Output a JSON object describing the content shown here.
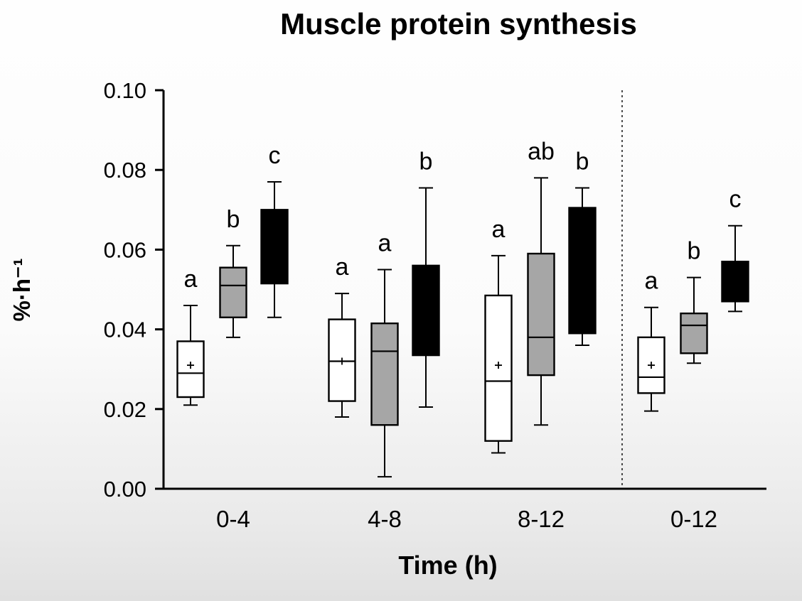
{
  "chart_data": {
    "type": "boxplot",
    "title": "Muscle protein synthesis",
    "xlabel": "Time (h)",
    "ylabel": "%·h⁻¹",
    "ylim": [
      0.0,
      0.1
    ],
    "yticks": [
      0.0,
      0.02,
      0.04,
      0.06,
      0.08,
      0.1
    ],
    "ytick_labels": [
      "0.00",
      "0.02",
      "0.04",
      "0.06",
      "0.08",
      "0.10"
    ],
    "categories": [
      "0-4",
      "4-8",
      "8-12",
      "0-12"
    ],
    "grid": false,
    "legend": "none",
    "separator": {
      "between": [
        "8-12",
        "0-12"
      ],
      "style": "dashed"
    },
    "series": [
      {
        "id": "white",
        "fill": "#ffffff"
      },
      {
        "id": "gray",
        "fill": "#a6a6a6"
      },
      {
        "id": "black",
        "fill": "#000000"
      }
    ],
    "boxes": [
      {
        "category": "0-4",
        "series": "white",
        "whisker_low": 0.021,
        "q1": 0.023,
        "median": 0.029,
        "q3": 0.037,
        "whisker_high": 0.046,
        "mean": 0.031,
        "letter": "a"
      },
      {
        "category": "0-4",
        "series": "gray",
        "whisker_low": 0.038,
        "q1": 0.043,
        "median": 0.051,
        "q3": 0.0555,
        "whisker_high": 0.061,
        "mean": null,
        "letter": "b"
      },
      {
        "category": "0-4",
        "series": "black",
        "whisker_low": 0.043,
        "q1": 0.0515,
        "median": null,
        "q3": 0.07,
        "whisker_high": 0.077,
        "mean": null,
        "letter": "c"
      },
      {
        "category": "4-8",
        "series": "white",
        "whisker_low": 0.018,
        "q1": 0.022,
        "median": 0.032,
        "q3": 0.0425,
        "whisker_high": 0.049,
        "mean": 0.032,
        "letter": "a"
      },
      {
        "category": "4-8",
        "series": "gray",
        "whisker_low": 0.003,
        "q1": 0.016,
        "median": 0.0345,
        "q3": 0.0415,
        "whisker_high": 0.055,
        "mean": null,
        "letter": "a"
      },
      {
        "category": "4-8",
        "series": "black",
        "whisker_low": 0.0205,
        "q1": 0.0335,
        "median": null,
        "q3": 0.056,
        "whisker_high": 0.0755,
        "mean": null,
        "letter": "b"
      },
      {
        "category": "8-12",
        "series": "white",
        "whisker_low": 0.009,
        "q1": 0.012,
        "median": 0.027,
        "q3": 0.0485,
        "whisker_high": 0.0585,
        "mean": 0.031,
        "letter": "a"
      },
      {
        "category": "8-12",
        "series": "gray",
        "whisker_low": 0.016,
        "q1": 0.0285,
        "median": 0.038,
        "q3": 0.059,
        "whisker_high": 0.078,
        "mean": null,
        "letter": "ab"
      },
      {
        "category": "8-12",
        "series": "black",
        "whisker_low": 0.036,
        "q1": 0.039,
        "median": null,
        "q3": 0.0705,
        "whisker_high": 0.0755,
        "mean": null,
        "letter": "b"
      },
      {
        "category": "0-12",
        "series": "white",
        "whisker_low": 0.0195,
        "q1": 0.024,
        "median": 0.028,
        "q3": 0.038,
        "whisker_high": 0.0455,
        "mean": 0.031,
        "letter": "a"
      },
      {
        "category": "0-12",
        "series": "gray",
        "whisker_low": 0.0315,
        "q1": 0.034,
        "median": 0.041,
        "q3": 0.044,
        "whisker_high": 0.053,
        "mean": null,
        "letter": "b"
      },
      {
        "category": "0-12",
        "series": "black",
        "whisker_low": 0.0445,
        "q1": 0.047,
        "median": null,
        "q3": 0.057,
        "whisker_high": 0.066,
        "mean": null,
        "letter": "c"
      }
    ]
  }
}
